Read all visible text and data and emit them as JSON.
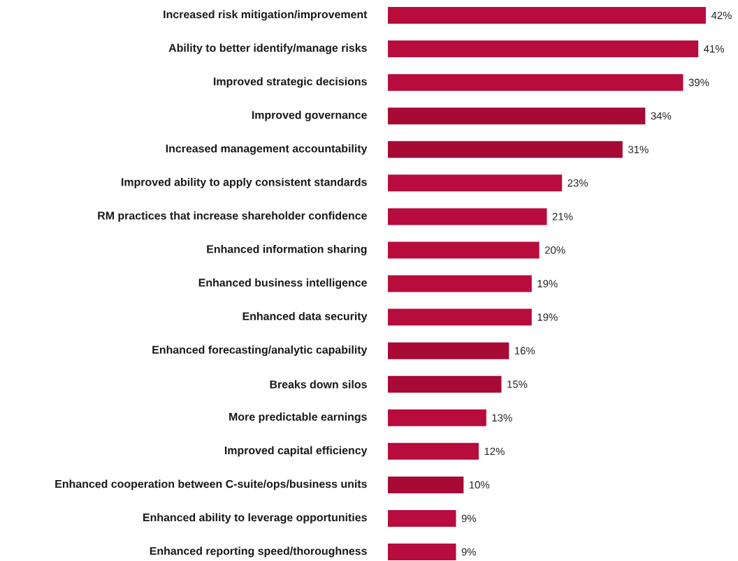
{
  "chart_data": {
    "type": "bar",
    "orientation": "horizontal",
    "categories": [
      "Increased risk mitigation/improvement",
      "Ability to better identify/manage risks",
      "Improved strategic decisions",
      "Improved governance",
      "Increased management accountability",
      "Improved ability to apply consistent standards",
      "RM practices that increase shareholder confidence",
      "Enhanced information sharing",
      "Enhanced business intelligence",
      "Enhanced data security",
      "Enhanced forecasting/analytic capability",
      "Breaks down silos",
      "More predictable earnings",
      "Improved capital efficiency",
      "Enhanced cooperation between C-suite/ops/business units",
      "Enhanced ability to leverage opportunities",
      "Enhanced reporting speed/thoroughness"
    ],
    "values": [
      42,
      41,
      39,
      34,
      31,
      23,
      21,
      20,
      19,
      19,
      16,
      15,
      13,
      12,
      10,
      9,
      9
    ],
    "value_labels": [
      "42%",
      "41%",
      "39%",
      "34%",
      "31%",
      "23%",
      "21%",
      "20%",
      "19%",
      "19%",
      "16%",
      "15%",
      "13%",
      "12%",
      "10%",
      "9%",
      "9%"
    ],
    "colors": [
      "#b70c3c",
      "#b70c3c",
      "#b70c3c",
      "#a70a35",
      "#a70a35",
      "#b70c3c",
      "#b70c3c",
      "#b70c3c",
      "#b70c3c",
      "#b70c3c",
      "#a70a35",
      "#a70a35",
      "#b70c3c",
      "#b70c3c",
      "#a70a35",
      "#b70c3c",
      "#b70c3c"
    ]
  }
}
